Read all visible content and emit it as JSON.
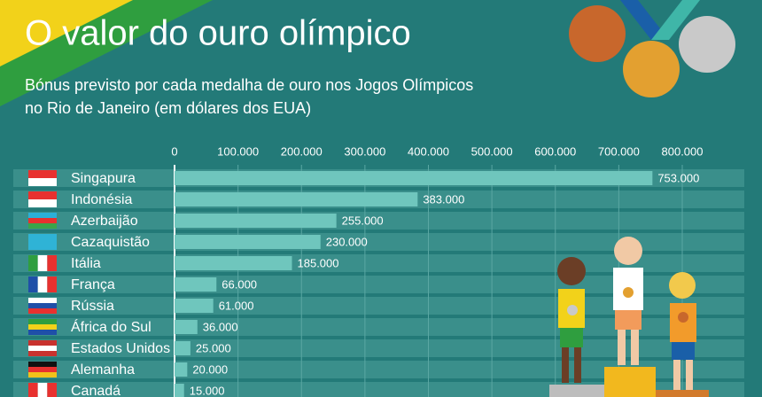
{
  "chart_data": {
    "type": "bar",
    "orientation": "horizontal",
    "title": "O valor do ouro olímpico",
    "subtitle": [
      "Bónus previsto por cada medalha de ouro nos Jogos Olímpicos",
      "no Rio de Janeiro (em dólares dos EUA)"
    ],
    "categories": [
      "Singapura",
      "Indonésia",
      "Azerbaijão",
      "Cazaquistão",
      "Itália",
      "França",
      "Rússia",
      "África do Sul",
      "Estados Unidos",
      "Alemanha",
      "Canadá"
    ],
    "values": [
      753000,
      383000,
      255000,
      230000,
      185000,
      66000,
      61000,
      36000,
      25000,
      20000,
      15000
    ],
    "value_labels": [
      "753.000",
      "383.000",
      "255.000",
      "230.000",
      "185.000",
      "66.000",
      "61.000",
      "36.000",
      "25.000",
      "20.000",
      "15.000"
    ],
    "color": "#6fc6bd",
    "xlim": [
      0,
      800000
    ],
    "xticks": [
      0,
      {
        "value": 100000,
        "label": "100.000"
      },
      {
        "value": 200000,
        "label": "200.000"
      },
      {
        "value": 300000,
        "label": "300.000"
      },
      {
        "value": 400000,
        "label": "400.000"
      },
      {
        "value": 500000,
        "label": "500.000"
      },
      {
        "value": 600000,
        "label": "600.000"
      },
      {
        "value": 700000,
        "label": "700.000"
      },
      {
        "value": 800000,
        "label": "800.000"
      }
    ],
    "grid": true
  }
}
